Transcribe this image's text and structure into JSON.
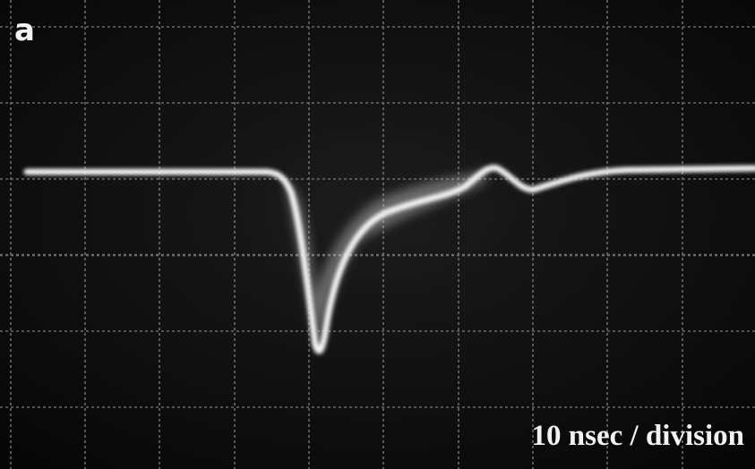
{
  "panel_label": "a",
  "caption": "10 nsec / division"
}
